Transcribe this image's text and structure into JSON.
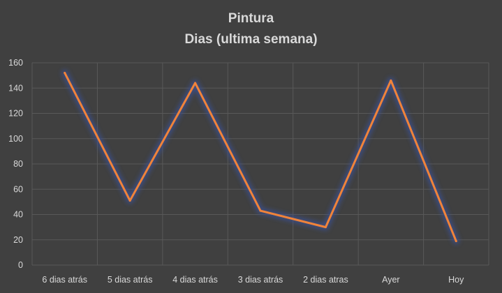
{
  "chart_data": {
    "type": "line",
    "title": "Pintura",
    "subtitle": "Dias (ultima semana)",
    "categories": [
      "6 dias atrás",
      "5 dias atrás",
      "4 dias atrás",
      "3 dias atrás",
      "2 dias atras",
      "Ayer",
      "Hoy"
    ],
    "series": [
      {
        "values": [
          152,
          51,
          144,
          43,
          30,
          146,
          19
        ],
        "color": "#f0833a"
      }
    ],
    "ylim": [
      0,
      160
    ],
    "yticks": [
      0,
      20,
      40,
      60,
      80,
      100,
      120,
      140,
      160
    ],
    "grid": true,
    "xlabel": "",
    "ylabel": ""
  },
  "colors": {
    "background": "#404040",
    "gridline": "#595959",
    "text": "#d9d9d9",
    "line": "#f0833a",
    "glow": "#3a4f8f"
  }
}
